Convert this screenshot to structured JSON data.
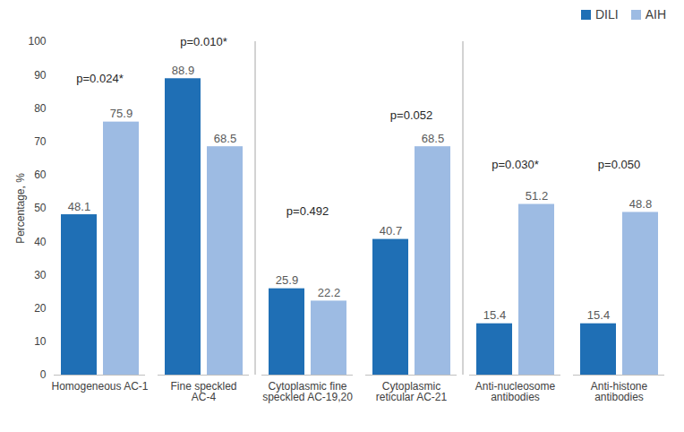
{
  "chart_data": {
    "type": "bar",
    "y_label": "Percentage, %",
    "categories": [
      "Homogeneous AC-1",
      "Fine speckled AC-4",
      "Cytoplasmic fine speckled AC-19,20",
      "Cytoplasmic reticular AC-21",
      "Anti-nucleosome antibodies",
      "Anti-histone antibodies"
    ],
    "series": [
      {
        "name": "DILI",
        "color": "#1f6fb5",
        "values": [
          48.1,
          88.9,
          25.9,
          40.7,
          15.4,
          15.4
        ]
      },
      {
        "name": "AIH",
        "color": "#9dbbe3",
        "values": [
          75.9,
          68.5,
          22.2,
          68.5,
          51.2,
          48.8
        ]
      }
    ],
    "annotations": [
      {
        "category": "Homogeneous AC-1",
        "text": "p=0.024*",
        "y": 89
      },
      {
        "category": "Fine speckled AC-4",
        "text": "p=0.010*",
        "y": 100
      },
      {
        "category": "Cytoplasmic fine speckled AC-19,20",
        "text": "p=0.492",
        "y": 49
      },
      {
        "category": "Cytoplasmic reticular AC-21",
        "text": "p=0.052",
        "y": 78
      },
      {
        "category": "Anti-nucleosome antibodies",
        "text": "p=0.030*",
        "y": 63
      },
      {
        "category": "Anti-histone antibodies",
        "text": "p=0.050",
        "y": 63
      }
    ],
    "ylim": [
      0,
      100
    ],
    "yticks": [
      0,
      10,
      20,
      30,
      40,
      50,
      60,
      70,
      80,
      90,
      100
    ],
    "data_labels": true,
    "grid": false,
    "legend": "top-right"
  }
}
